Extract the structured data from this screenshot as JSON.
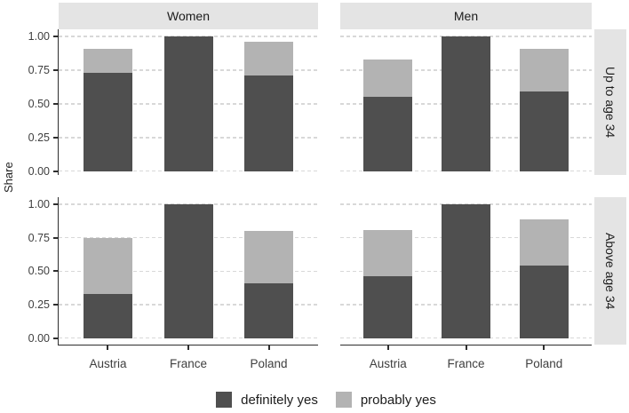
{
  "chart_data": {
    "type": "bar",
    "stacked": true,
    "title": "",
    "ylabel": "Share",
    "ylim": [
      0,
      1
    ],
    "y_ticks": [
      0,
      0.25,
      0.5,
      0.75,
      1
    ],
    "y_tick_labels": [
      "0.00",
      "0.25",
      "0.50",
      "0.75",
      "1.00"
    ],
    "grid": "horizontal-dashed",
    "legend_position": "bottom",
    "facet_cols": [
      "Women",
      "Men"
    ],
    "facet_rows": [
      "Up to age 34",
      "Above age 34"
    ],
    "categories": [
      "Austria",
      "France",
      "Poland"
    ],
    "series_names": [
      "definitely yes",
      "probably yes"
    ],
    "colors": {
      "definitely yes": "#4f4f4f",
      "probably yes": "#b3b3b3"
    },
    "panels": [
      {
        "col": "Women",
        "row": "Up to age 34",
        "series": [
          {
            "name": "definitely yes",
            "values": [
              0.73,
              1.0,
              0.71
            ]
          },
          {
            "name": "probably yes",
            "values": [
              0.18,
              0.0,
              0.25
            ]
          }
        ]
      },
      {
        "col": "Men",
        "row": "Up to age 34",
        "series": [
          {
            "name": "definitely yes",
            "values": [
              0.55,
              1.0,
              0.59
            ]
          },
          {
            "name": "probably yes",
            "values": [
              0.28,
              0.0,
              0.32
            ]
          }
        ]
      },
      {
        "col": "Women",
        "row": "Above age 34",
        "series": [
          {
            "name": "definitely yes",
            "values": [
              0.33,
              1.0,
              0.41
            ]
          },
          {
            "name": "probably yes",
            "values": [
              0.42,
              0.0,
              0.39
            ]
          }
        ]
      },
      {
        "col": "Men",
        "row": "Above age 34",
        "series": [
          {
            "name": "definitely yes",
            "values": [
              0.46,
              1.0,
              0.54
            ]
          },
          {
            "name": "probably yes",
            "values": [
              0.35,
              0.0,
              0.35
            ]
          }
        ]
      }
    ]
  }
}
